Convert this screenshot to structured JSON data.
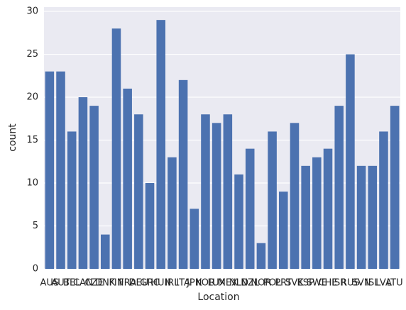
{
  "chart_data": {
    "type": "bar",
    "x_label": "Location",
    "y_label": "count",
    "categories": [
      "AUS",
      "AUT",
      "BEL",
      "CAN",
      "CZE",
      "DNK",
      "FIN",
      "FRA",
      "DEU",
      "GRC",
      "HUN",
      "IRL",
      "ITA",
      "JPN",
      "KOR",
      "LUX",
      "MEX",
      "NLD",
      "NZL",
      "NOR",
      "POL",
      "PRT",
      "SVK",
      "ESP",
      "SWE",
      "CHE",
      "ISR",
      "RUS",
      "SVN",
      "ISL",
      "LVA",
      "LTU"
    ],
    "values": [
      23,
      23,
      16,
      20,
      19,
      4,
      28,
      21,
      18,
      10,
      29,
      13,
      22,
      7,
      18,
      17,
      18,
      11,
      14,
      3,
      16,
      9,
      17,
      12,
      13,
      14,
      19,
      25,
      12,
      12,
      16,
      19
    ],
    "color": "#4c72b0",
    "ylim": [
      0,
      30.5
    ],
    "yticks": [
      0,
      5,
      10,
      15,
      20,
      25,
      30
    ],
    "grid": true
  }
}
